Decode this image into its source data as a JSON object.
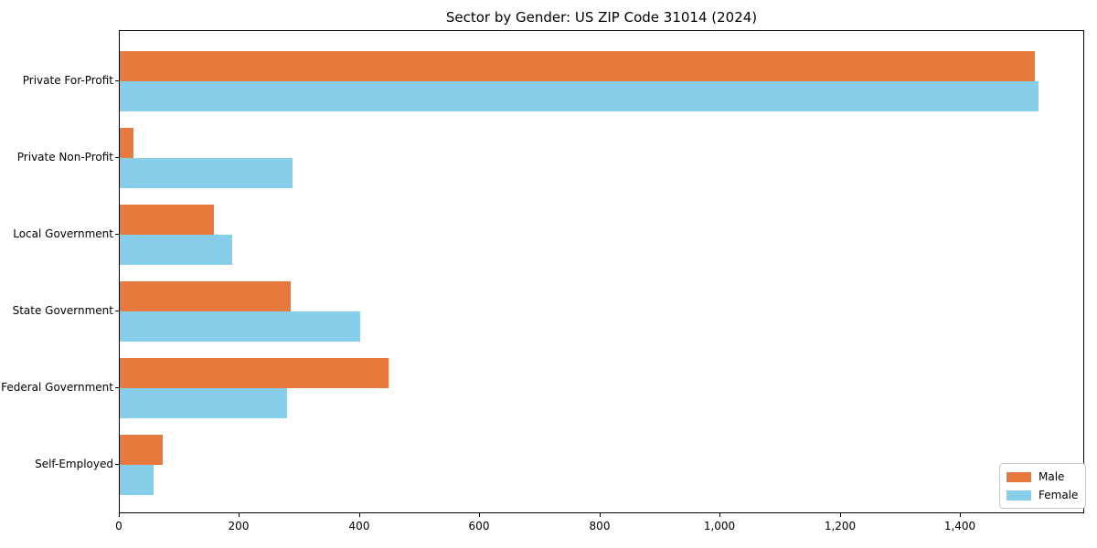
{
  "title": "Sector by Gender: US ZIP Code 31014 (2024)",
  "chart_data": {
    "type": "bar",
    "orientation": "horizontal",
    "title": "Sector by Gender: US ZIP Code 31014 (2024)",
    "categories": [
      "Private For-Profit",
      "Private Non-Profit",
      "Local Government",
      "State Government",
      "Federal Government",
      "Self-Employed"
    ],
    "series": [
      {
        "name": "Male",
        "color": "#e8793c",
        "values": [
          1524,
          23,
          157,
          285,
          447,
          72
        ]
      },
      {
        "name": "Female",
        "color": "#87ceeb",
        "values": [
          1530,
          288,
          187,
          400,
          278,
          56
        ]
      }
    ],
    "xlabel": "",
    "ylabel": "",
    "xlim": [
      0,
      1607
    ],
    "x_ticks": [
      0,
      200,
      400,
      600,
      800,
      1000,
      1200,
      1400
    ],
    "x_tick_labels": [
      "0",
      "200",
      "400",
      "600",
      "800",
      "1,000",
      "1,200",
      "1,400"
    ],
    "grid": false,
    "legend": {
      "position": "lower right",
      "items": [
        {
          "label": "Male",
          "color": "#e8793c"
        },
        {
          "label": "Female",
          "color": "#87ceeb"
        }
      ]
    }
  }
}
